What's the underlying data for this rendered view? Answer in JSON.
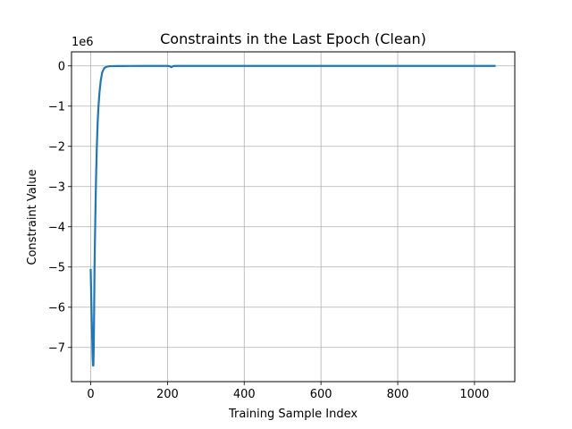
{
  "chart_data": {
    "type": "line",
    "title": "Constraints in the Last Epoch (Clean)",
    "xlabel": "Training Sample Index",
    "ylabel": "Constraint Value",
    "y_offset_label": "1e6",
    "xlim": [
      -50,
      1105
    ],
    "ylim": [
      -7.85,
      0.35
    ],
    "x_ticks": [
      0,
      200,
      400,
      600,
      800,
      1000
    ],
    "x_tick_labels": [
      "0",
      "200",
      "400",
      "600",
      "800",
      "1000"
    ],
    "y_ticks": [
      0,
      -1,
      -2,
      -3,
      -4,
      -5,
      -6,
      -7
    ],
    "y_tick_labels": [
      "0",
      "−1",
      "−2",
      "−3",
      "−4",
      "−5",
      "−6",
      "−7"
    ],
    "grid": true,
    "line_color": "#1f77b4",
    "series": [
      {
        "name": "",
        "x": [
          0,
          2,
          4,
          5,
          6,
          7,
          8,
          9,
          10,
          12,
          14,
          16,
          18,
          20,
          23,
          26,
          30,
          35,
          40,
          45,
          50,
          60,
          70,
          80,
          100,
          150,
          200,
          205,
          208,
          210,
          212,
          215,
          220,
          300,
          400,
          500,
          600,
          700,
          800,
          900,
          1000,
          1055
        ],
        "y": [
          -5.05,
          -6.0,
          -6.8,
          -7.25,
          -7.45,
          -7.45,
          -7.0,
          -6.1,
          -5.0,
          -3.8,
          -2.8,
          -2.0,
          -1.45,
          -1.05,
          -0.65,
          -0.38,
          -0.16,
          -0.06,
          -0.025,
          -0.012,
          -0.007,
          -0.004,
          -0.003,
          -0.002,
          -0.001,
          -0.0005,
          -0.0003,
          -0.005,
          -0.02,
          -0.03,
          -0.02,
          -0.005,
          -0.0002,
          -0.0001,
          -0.0001,
          -0.0001,
          -0.0001,
          -0.0001,
          -0.0001,
          -0.0001,
          -0.0001,
          -0.0001
        ]
      }
    ]
  }
}
